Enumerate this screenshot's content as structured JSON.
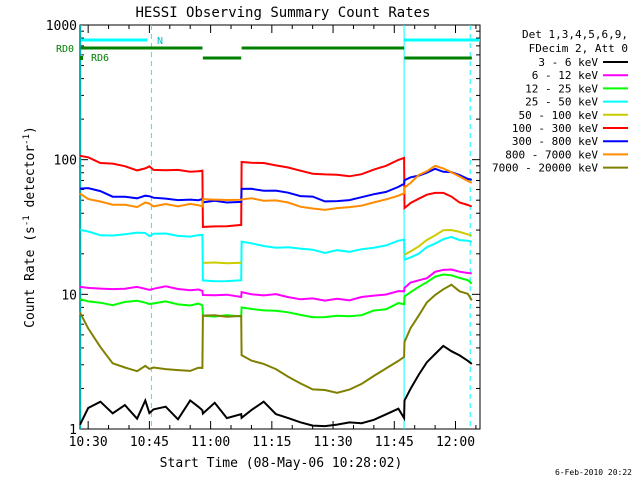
{
  "chart_data": {
    "type": "line",
    "title": "HESSI Observing Summary Count Rates",
    "xlabel": "Start Time (08-May-06 10:28:02)",
    "ylabel": "Count Rate (s",
    "ylabel_sup": "-1",
    "ylabel_mid": " detector",
    "ylabel_sup2": "-1",
    "ylabel_end": ")",
    "yscale": "log",
    "ylim": [
      1,
      1000
    ],
    "xlim_minutes": [
      628,
      726
    ],
    "x_ticks": [
      "10:30",
      "10:45",
      "11:00",
      "11:15",
      "11:30",
      "11:45",
      "12:00"
    ],
    "x_tick_minutes": [
      630,
      645,
      660,
      675,
      690,
      705,
      720
    ],
    "y_ticks": [
      "1",
      "10",
      "100",
      "1000"
    ],
    "y_tick_values": [
      1,
      10,
      100,
      1000
    ],
    "legend_header": [
      "Det 1,3,4,5,6,9,",
      "FDecim 2, Att 0"
    ],
    "legend_placement": "right",
    "flag_labels": {
      "RD0": "RD0",
      "RD6": "RD6",
      "N": "N"
    },
    "night_lines_minutes": [
      628.2,
      707.4
    ],
    "dashed_lines_minutes": [
      645.5,
      723.6
    ],
    "x": [
      628,
      630,
      633,
      636,
      639,
      642,
      644,
      645,
      646,
      649,
      652,
      655,
      657,
      658,
      658.1,
      661,
      664,
      667.5,
      667.6,
      670,
      673,
      676,
      679,
      682,
      685,
      688,
      691,
      694,
      697,
      700,
      703,
      706,
      707.4,
      707.5,
      709,
      711,
      713,
      715,
      717,
      719,
      721,
      723,
      724
    ],
    "series": [
      {
        "name": "3 - 6 keV",
        "color": "#000000",
        "values": [
          1.1,
          1.4,
          1.6,
          1.3,
          1.5,
          1.2,
          1.6,
          1.3,
          1.4,
          1.5,
          1.2,
          1.6,
          1.5,
          1.4,
          1.3,
          1.6,
          1.2,
          1.3,
          1.2,
          1.4,
          1.6,
          1.3,
          1.2,
          1.1,
          1.05,
          1.05,
          1.05,
          1.1,
          1.1,
          1.2,
          1.3,
          1.4,
          1.2,
          1.6,
          2.0,
          2.6,
          3.2,
          3.6,
          4.2,
          3.8,
          3.6,
          3.2,
          3.0
        ]
      },
      {
        "name": "6 - 12 keV",
        "color": "#ff00ff",
        "values": [
          11.5,
          11.2,
          11.0,
          10.8,
          11.2,
          11.5,
          11.0,
          10.8,
          11.0,
          11.2,
          11.0,
          10.8,
          10.8,
          10.8,
          9.8,
          9.8,
          9.8,
          9.8,
          10.5,
          10.2,
          10.0,
          9.8,
          9.6,
          9.4,
          9.2,
          9.1,
          9.1,
          9.2,
          9.4,
          9.7,
          10.0,
          10.5,
          10.5,
          11.2,
          12.0,
          12.8,
          13.5,
          14.5,
          15.0,
          15.5,
          15.0,
          14.5,
          14.0
        ]
      },
      {
        "name": "12 - 25 keV",
        "color": "#00ff00",
        "values": [
          9.0,
          8.8,
          8.6,
          8.5,
          8.8,
          9.0,
          8.7,
          8.5,
          8.6,
          8.8,
          8.6,
          8.4,
          8.4,
          8.4,
          7.0,
          7.0,
          7.0,
          7.0,
          8.0,
          7.8,
          7.6,
          7.4,
          7.2,
          7.0,
          6.9,
          6.8,
          6.8,
          6.9,
          7.1,
          7.4,
          7.8,
          8.4,
          8.4,
          9.5,
          10.5,
          11.5,
          12.5,
          13.5,
          14.0,
          13.8,
          13.2,
          12.5,
          12.0
        ]
      },
      {
        "name": "25 - 50 keV",
        "color": "#00ffff",
        "values": [
          30.0,
          29.0,
          28.0,
          27.5,
          28.5,
          29.0,
          28.0,
          27.5,
          27.5,
          28.0,
          27.5,
          27.0,
          27.0,
          27.0,
          12.5,
          12.5,
          12.5,
          12.5,
          24.0,
          23.5,
          23.0,
          22.5,
          22.0,
          21.5,
          21.0,
          20.8,
          20.8,
          21.0,
          21.5,
          22.5,
          23.5,
          25.0,
          25.0,
          18.0,
          19.0,
          20.5,
          22.0,
          24.0,
          25.5,
          26.5,
          25.5,
          24.5,
          24.0
        ]
      },
      {
        "name": "50 - 100 keV",
        "color": "#cccc00",
        "values": [
          null,
          null,
          null,
          null,
          null,
          null,
          null,
          null,
          null,
          null,
          null,
          null,
          null,
          null,
          17.0,
          17.0,
          17.0,
          17.0,
          null,
          null,
          null,
          null,
          null,
          null,
          null,
          null,
          null,
          null,
          null,
          null,
          null,
          null,
          null,
          20.0,
          21.0,
          23.0,
          25.0,
          27.5,
          29.5,
          30.5,
          29.0,
          28.0,
          27.0
        ]
      },
      {
        "name": "100 - 300 keV",
        "color": "#ff0000",
        "values": [
          105,
          102,
          96,
          92,
          88,
          84,
          88,
          90,
          86,
          85,
          84,
          83,
          82,
          82,
          32,
          32,
          32,
          32,
          98,
          97,
          95,
          92,
          88,
          84,
          80,
          77,
          76,
          77,
          80,
          85,
          92,
          100,
          104,
          44,
          47,
          52,
          56,
          58,
          56,
          52,
          49,
          46,
          44
        ]
      },
      {
        "name": "300 - 800 keV",
        "color": "#0000ff",
        "values": [
          62,
          60,
          57,
          54,
          52,
          51,
          53,
          54,
          52,
          52,
          51,
          51,
          51,
          51,
          49,
          49,
          49,
          49,
          62,
          61,
          60,
          58,
          56,
          54,
          52,
          50,
          50,
          51,
          52,
          55,
          58,
          63,
          66,
          69,
          73,
          78,
          82,
          84,
          83,
          80,
          76,
          73,
          70
        ]
      },
      {
        "name": "800 - 7000 keV",
        "color": "#ff8c00",
        "values": [
          55,
          52,
          49,
          47,
          46,
          45,
          47,
          48,
          46,
          46,
          46,
          46,
          46,
          46,
          51,
          51,
          51,
          51,
          52,
          51,
          50,
          49,
          47,
          45,
          44,
          43,
          43,
          44,
          45,
          47,
          50,
          54,
          56,
          62,
          68,
          76,
          84,
          88,
          86,
          80,
          75,
          70,
          66
        ]
      },
      {
        "name": "7000 - 20000 keV",
        "color": "#808000",
        "values": [
          7.5,
          5.5,
          4.0,
          3.0,
          2.8,
          2.7,
          3.0,
          2.8,
          2.8,
          2.8,
          2.7,
          2.7,
          2.8,
          2.8,
          7.0,
          7.0,
          7.0,
          7.0,
          3.6,
          3.3,
          3.0,
          2.8,
          2.5,
          2.2,
          2.0,
          1.9,
          1.9,
          2.0,
          2.2,
          2.5,
          2.8,
          3.2,
          3.4,
          4.5,
          5.5,
          7.0,
          8.5,
          10.0,
          11.0,
          11.5,
          10.8,
          10.0,
          9.2
        ]
      }
    ]
  },
  "footer_timestamp": "6-Feb-2010 20:22"
}
